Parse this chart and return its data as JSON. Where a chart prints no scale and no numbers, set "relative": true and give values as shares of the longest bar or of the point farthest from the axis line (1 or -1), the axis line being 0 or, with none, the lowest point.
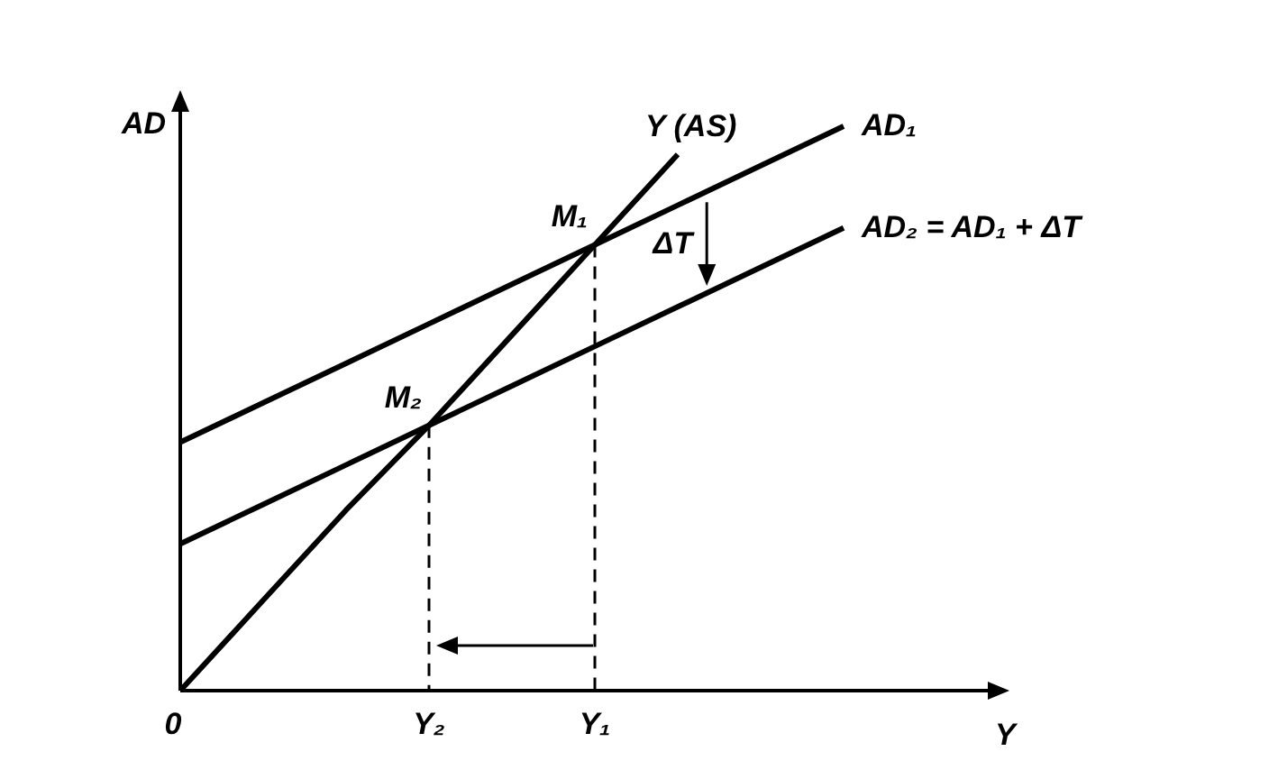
{
  "chart_data": {
    "type": "line",
    "relative": true,
    "xlabel": "Y",
    "ylabel": "AD",
    "categories": [
      "0",
      null,
      null,
      "Y₂",
      null,
      "Y₁",
      null,
      null,
      null
    ],
    "tick_labels": "x",
    "legend": false,
    "marker": "none",
    "line_style": "solid",
    "series": [
      {
        "name": "Y (AS)",
        "color": "#000000",
        "values": [
          0,
          0.16,
          0.32,
          0.47,
          0.63,
          0.79,
          0.95,
          null,
          null
        ]
      },
      {
        "name": "AD₁",
        "color": "#000000",
        "values": [
          0.44,
          0.51,
          0.58,
          0.65,
          0.72,
          0.79,
          0.86,
          0.93,
          1.0
        ]
      },
      {
        "name": "AD₂ = AD₁ + ΔT",
        "color": "#000000",
        "values": [
          0.26,
          0.33,
          0.4,
          0.47,
          0.54,
          0.61,
          0.68,
          0.75,
          0.82
        ]
      }
    ],
    "annotations": [
      {
        "text": "M₁",
        "x": "Y₁",
        "y": 0.79
      },
      {
        "text": "M₂",
        "x": "Y₂",
        "y": 0.47
      },
      "ΔT"
    ]
  }
}
